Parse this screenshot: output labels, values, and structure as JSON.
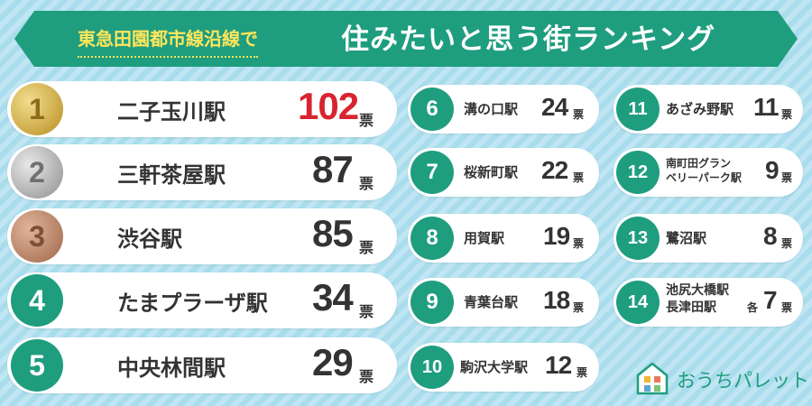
{
  "banner": {
    "line_left": "東急田園都市線沿線で",
    "line_right": "住みたいと思う街ランキング"
  },
  "unit": "票",
  "each_label": "各",
  "colors": {
    "accent": "#1f9d7f",
    "highlight_yellow": "#ffe65a",
    "first_place_red": "#d8242f",
    "gold": "#c9a541",
    "silver": "#a9a9a9",
    "bronze": "#b27e61"
  },
  "rankings": [
    {
      "rank": "1",
      "name": "二子玉川駅",
      "votes": "102"
    },
    {
      "rank": "2",
      "name": "三軒茶屋駅",
      "votes": "87"
    },
    {
      "rank": "3",
      "name": "渋谷駅",
      "votes": "85"
    },
    {
      "rank": "4",
      "name": "たまプラーザ駅",
      "votes": "34"
    },
    {
      "rank": "5",
      "name": "中央林間駅",
      "votes": "29"
    },
    {
      "rank": "6",
      "name": "溝の口駅",
      "votes": "24"
    },
    {
      "rank": "7",
      "name": "桜新町駅",
      "votes": "22"
    },
    {
      "rank": "8",
      "name": "用賀駅",
      "votes": "19"
    },
    {
      "rank": "9",
      "name": "青葉台駅",
      "votes": "18"
    },
    {
      "rank": "10",
      "name": "駒沢大学駅",
      "votes": "12"
    },
    {
      "rank": "11",
      "name": "あざみ野駅",
      "votes": "11"
    },
    {
      "rank": "12",
      "name_line1": "南町田グラン",
      "name_line2": "ベリーパーク駅",
      "votes": "9"
    },
    {
      "rank": "13",
      "name": "鷺沼駅",
      "votes": "8"
    },
    {
      "rank": "14",
      "name_line1": "池尻大橋駅",
      "name_line2": "長津田駅",
      "votes": "7"
    }
  ],
  "logo": {
    "text": "おうちパレット",
    "icon": "house-palette-icon"
  }
}
